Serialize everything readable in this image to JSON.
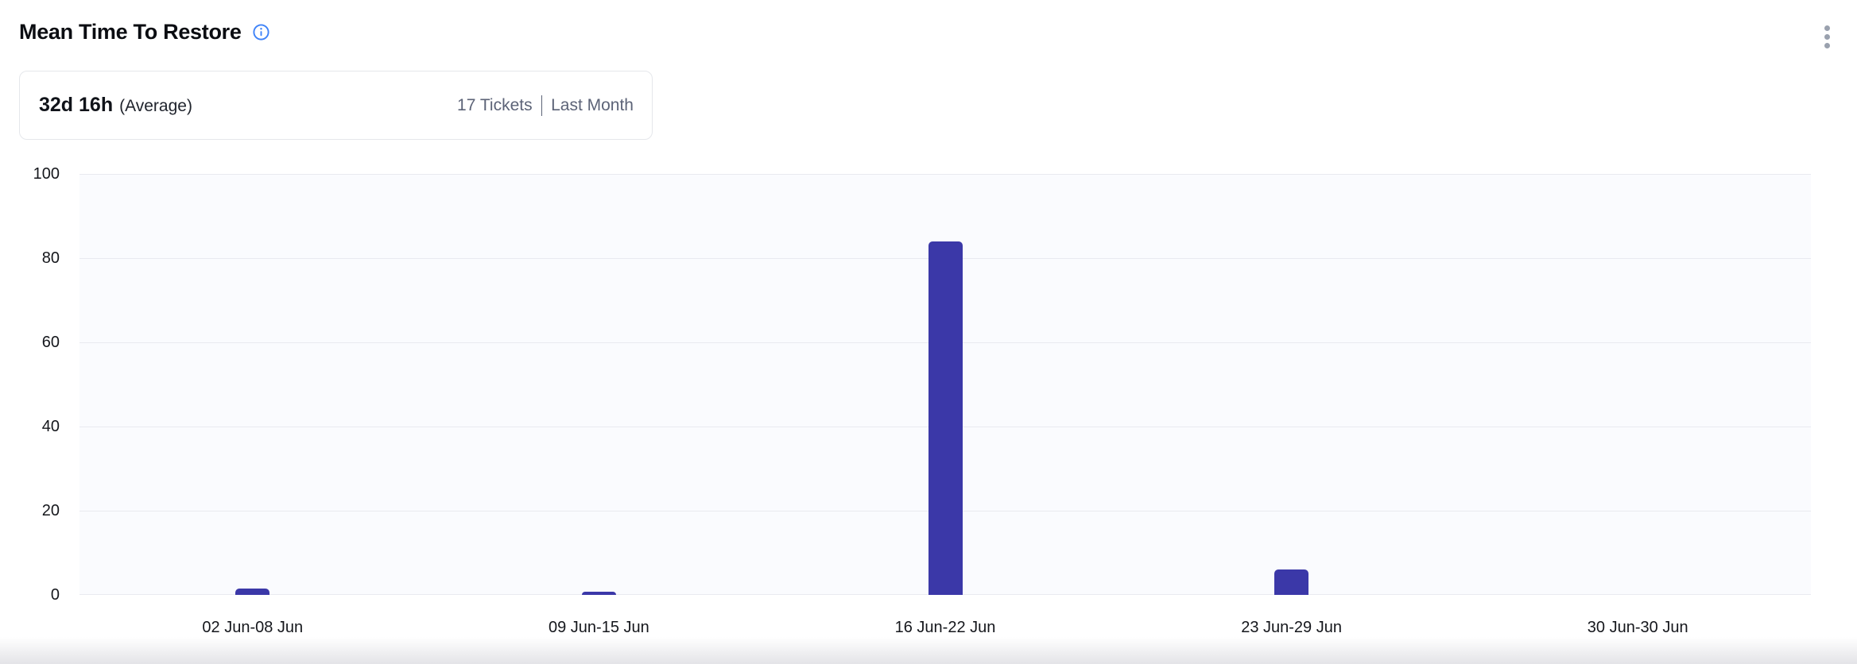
{
  "header": {
    "title": "Mean Time To Restore"
  },
  "summary": {
    "metric_value": "32d 16h",
    "metric_label": "(Average)",
    "tickets_label": "17 Tickets",
    "period_label": "Last Month"
  },
  "colors": {
    "bar": "#3b38a8",
    "info_icon": "#3f83f8",
    "kebab_icon": "#9aa1ae",
    "meta_text": "#5c6377",
    "gridline": "#e9eaf0",
    "plot_background": "#fafbfe"
  },
  "chart_data": {
    "type": "bar",
    "title": "Mean Time To Restore",
    "categories": [
      "02 Jun-08 Jun",
      "09 Jun-15 Jun",
      "16 Jun-22 Jun",
      "23 Jun-29 Jun",
      "30 Jun-30 Jun"
    ],
    "values": [
      1.5,
      0.75,
      84,
      6,
      0
    ],
    "xlabel": "",
    "ylabel": "",
    "ylim": [
      0,
      100
    ],
    "yticks": [
      0,
      20,
      40,
      60,
      80,
      100
    ],
    "grid": true,
    "legend": false,
    "bar_color": "#3b38a8"
  }
}
